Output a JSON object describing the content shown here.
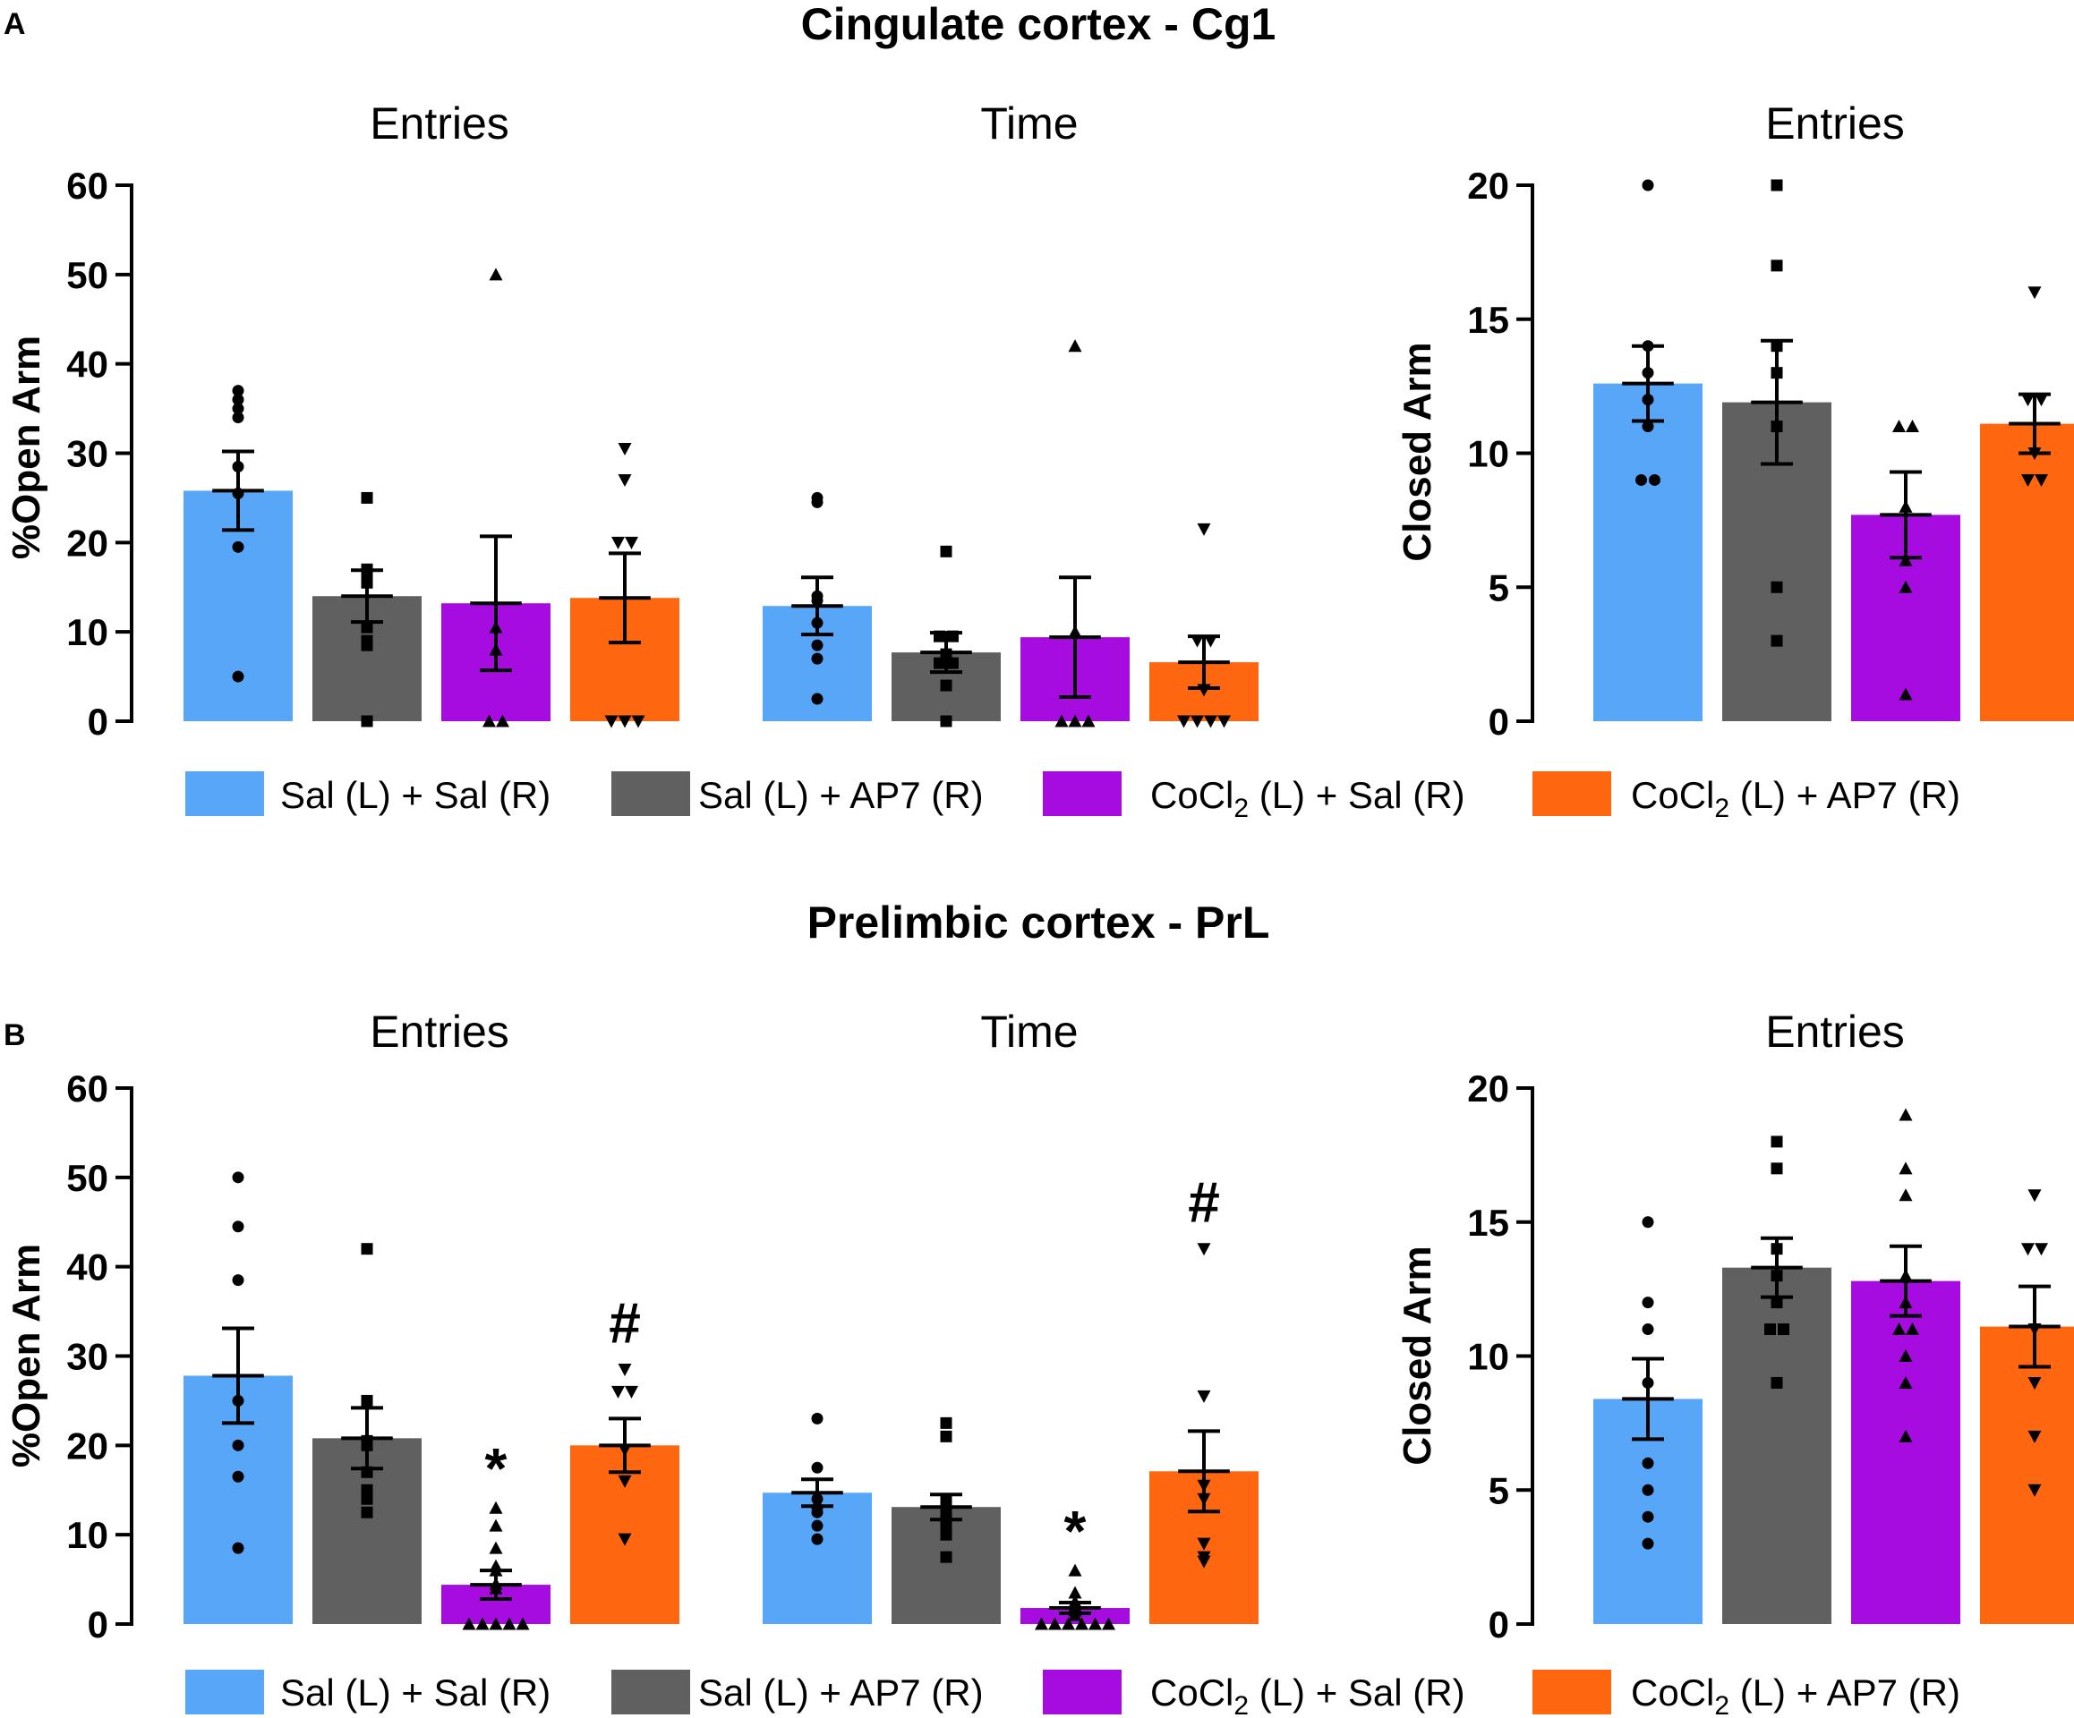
{
  "colors": {
    "sal_sal": "#58A6F7",
    "sal_ap7": "#606060",
    "cocl_sal": "#A60CDF",
    "cocl_ap7": "#FF6610",
    "axis": "#000000"
  },
  "legend": [
    {
      "pre": "Sal (L) + Sal (R)",
      "sub": "",
      "post": ""
    },
    {
      "pre": "Sal (L) + AP7 (R)",
      "sub": "",
      "post": ""
    },
    {
      "pre": "CoCl",
      "sub": "2",
      "post": " (L) + Sal (R)"
    },
    {
      "pre": "CoCl",
      "sub": "2",
      "post": " (L) + AP7 (R)"
    }
  ],
  "panels": [
    {
      "letter": "A",
      "title": "Cingulate cortex - Cg1",
      "open_ylabel": "%Open Arm",
      "closed_ylabel": "Closed Arm"
    },
    {
      "letter": "B",
      "title": "Prelimbic cortex - PrL",
      "open_ylabel": "%Open Arm",
      "closed_ylabel": "Closed Arm"
    }
  ],
  "chart_data": [
    {
      "type": "bar",
      "panel": "A",
      "title": "Entries",
      "ylabel": "%Open Arm",
      "ylim": [
        0,
        60
      ],
      "yticks": [
        0,
        10,
        20,
        30,
        40,
        50,
        60
      ],
      "categories": [
        "Sal (L) + Sal (R)",
        "Sal (L) + AP7 (R)",
        "CoCl2 (L) + Sal (R)",
        "CoCl2 (L) + AP7 (R)"
      ],
      "values": [
        25.8,
        14.0,
        13.2,
        13.8
      ],
      "sem": [
        4.4,
        2.9,
        7.5,
        5.0
      ],
      "points": [
        [
          37,
          36,
          35,
          34,
          28.5,
          25.5,
          19.5,
          5
        ],
        [
          25,
          17,
          16.5,
          15.5,
          10.5,
          9,
          8.5,
          0
        ],
        [
          50,
          10.5,
          8,
          0,
          0
        ],
        [
          30.5,
          27,
          20,
          20,
          0,
          0,
          0
        ]
      ],
      "markers": [
        "circle",
        "square",
        "triangle",
        "triangle-down"
      ],
      "annotations": [
        "",
        "",
        "",
        ""
      ]
    },
    {
      "type": "bar",
      "panel": "A",
      "title": "Time",
      "ylabel": "%Open Arm",
      "ylim": [
        0,
        60
      ],
      "yticks": [
        0,
        10,
        20,
        30,
        40,
        50,
        60
      ],
      "categories": [
        "Sal (L) + Sal (R)",
        "Sal (L) + AP7 (R)",
        "CoCl2 (L) + Sal (R)",
        "CoCl2 (L) + AP7 (R)"
      ],
      "values": [
        12.9,
        7.7,
        9.4,
        6.6
      ],
      "sem": [
        3.2,
        2.2,
        6.7,
        2.9
      ],
      "points": [
        [
          25,
          24.5,
          14,
          13.5,
          11,
          8.5,
          7,
          2.5
        ],
        [
          19,
          9.5,
          9.5,
          7.5,
          6.5,
          6.5,
          4,
          0
        ],
        [
          42,
          10,
          0,
          0,
          0
        ],
        [
          21.5,
          9,
          9,
          3.5,
          0,
          0,
          0,
          0
        ]
      ],
      "markers": [
        "circle",
        "square",
        "triangle",
        "triangle-down"
      ],
      "annotations": [
        "",
        "",
        "",
        ""
      ]
    },
    {
      "type": "bar",
      "panel": "A",
      "title": "Entries",
      "ylabel": "Closed Arm",
      "ylim": [
        0,
        20
      ],
      "yticks": [
        0,
        5,
        10,
        15,
        20
      ],
      "categories": [
        "Sal (L) + Sal (R)",
        "Sal (L) + AP7 (R)",
        "CoCl2 (L) + Sal (R)",
        "CoCl2 (L) + AP7 (R)"
      ],
      "values": [
        12.6,
        11.9,
        7.7,
        11.1
      ],
      "sem": [
        1.4,
        2.3,
        1.6,
        1.1
      ],
      "points": [
        [
          20,
          14,
          13,
          12,
          11,
          9,
          9
        ],
        [
          20,
          17,
          14,
          13,
          11,
          5,
          3
        ],
        [
          11,
          11,
          8,
          6,
          5,
          1
        ],
        [
          16,
          12,
          12,
          10,
          9,
          9
        ]
      ],
      "markers": [
        "circle",
        "square",
        "triangle",
        "triangle-down"
      ],
      "annotations": [
        "",
        "",
        "",
        ""
      ]
    },
    {
      "type": "bar",
      "panel": "B",
      "title": "Entries",
      "ylabel": "%Open Arm",
      "ylim": [
        0,
        60
      ],
      "yticks": [
        0,
        10,
        20,
        30,
        40,
        50,
        60
      ],
      "categories": [
        "Sal (L) + Sal (R)",
        "Sal (L) + AP7 (R)",
        "CoCl2 (L) + Sal (R)",
        "CoCl2 (L) + AP7 (R)"
      ],
      "values": [
        27.8,
        20.8,
        4.4,
        20.0
      ],
      "sem": [
        5.3,
        3.4,
        1.6,
        3.0
      ],
      "points": [
        [
          50,
          44.5,
          38.5,
          25,
          20,
          16.5,
          8.5
        ],
        [
          42,
          25,
          20.5,
          20,
          17,
          15,
          14,
          12.5
        ],
        [
          13,
          11,
          8.5,
          6.5,
          6,
          4.5,
          4,
          0,
          0,
          0,
          0,
          0
        ],
        [
          28.5,
          26,
          26,
          19.5,
          16,
          9.5
        ]
      ],
      "markers": [
        "circle",
        "square",
        "triangle",
        "triangle-down"
      ],
      "annotations": [
        "",
        "",
        "*",
        "#"
      ]
    },
    {
      "type": "bar",
      "panel": "B",
      "title": "Time",
      "ylabel": "%Open Arm",
      "ylim": [
        0,
        60
      ],
      "yticks": [
        0,
        10,
        20,
        30,
        40,
        50,
        60
      ],
      "categories": [
        "Sal (L) + Sal (R)",
        "Sal (L) + AP7 (R)",
        "CoCl2 (L) + Sal (R)",
        "CoCl2 (L) + AP7 (R)"
      ],
      "values": [
        14.7,
        13.1,
        1.8,
        17.1
      ],
      "sem": [
        1.5,
        1.4,
        0.6,
        4.5
      ],
      "points": [
        [
          23,
          17.5,
          14,
          13,
          12.5,
          11,
          9.5
        ],
        [
          22.5,
          21,
          14,
          13,
          12.5,
          11,
          10,
          7.5
        ],
        [
          6,
          3.5,
          2.5,
          2,
          1.5,
          1,
          0,
          0,
          0,
          0,
          0,
          0
        ],
        [
          42,
          25.5,
          15.5,
          14,
          9,
          7.5,
          7
        ]
      ],
      "markers": [
        "circle",
        "square",
        "triangle",
        "triangle-down"
      ],
      "annotations": [
        "",
        "",
        "*",
        "#"
      ]
    },
    {
      "type": "bar",
      "panel": "B",
      "title": "Entries",
      "ylabel": "Closed Arm",
      "ylim": [
        0,
        20
      ],
      "yticks": [
        0,
        5,
        10,
        15,
        20
      ],
      "categories": [
        "Sal (L) + Sal (R)",
        "Sal (L) + AP7 (R)",
        "CoCl2 (L) + Sal (R)",
        "CoCl2 (L) + AP7 (R)"
      ],
      "values": [
        8.4,
        13.3,
        12.8,
        11.1
      ],
      "sem": [
        1.5,
        1.1,
        1.3,
        1.5
      ],
      "points": [
        [
          15,
          12,
          11,
          9,
          6,
          5,
          4,
          3
        ],
        [
          18,
          17,
          14,
          13,
          12,
          11,
          11,
          9
        ],
        [
          19,
          17,
          16,
          13,
          12,
          11,
          11,
          10,
          9,
          7
        ],
        [
          16,
          14,
          14,
          11,
          9,
          7,
          5
        ]
      ],
      "markers": [
        "circle",
        "square",
        "triangle",
        "triangle-down"
      ],
      "annotations": [
        "",
        "",
        "",
        ""
      ]
    }
  ]
}
